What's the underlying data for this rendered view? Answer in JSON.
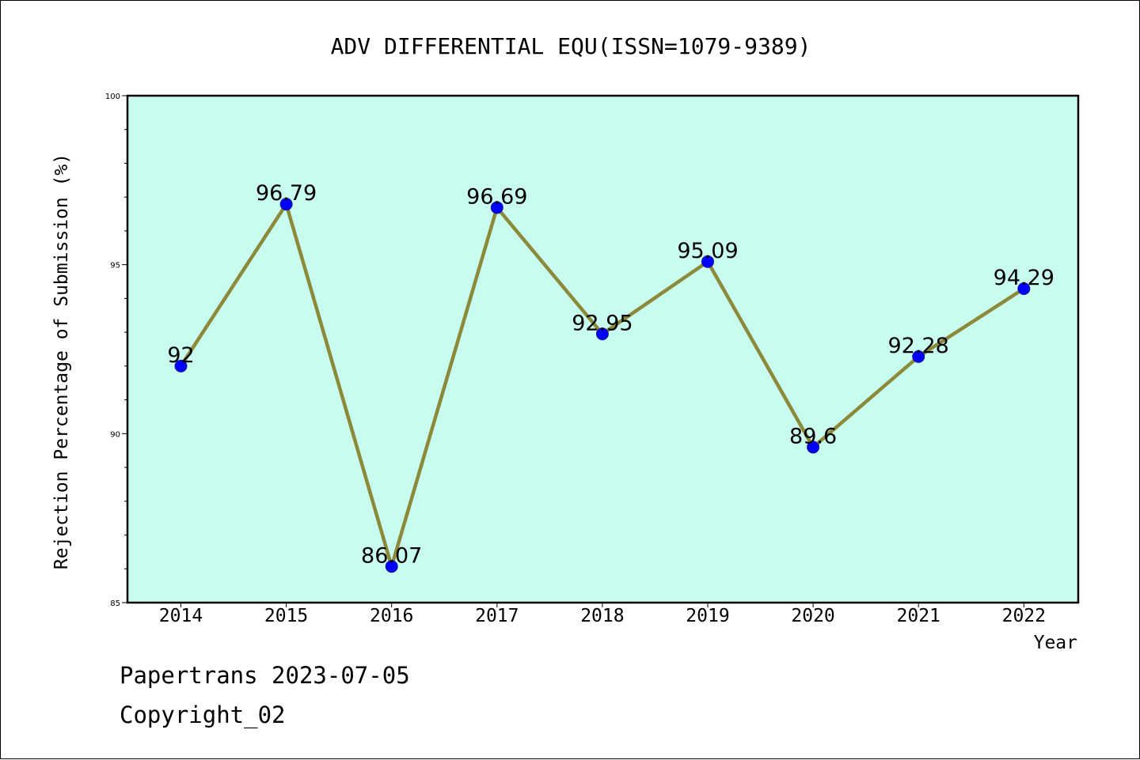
{
  "footer": {
    "line1": "Papertrans 2023-07-05",
    "line2": "Copyright_02"
  },
  "chart_data": {
    "type": "line",
    "title": "ADV DIFFERENTIAL EQU(ISSN=1079-9389)",
    "xlabel": "Year",
    "ylabel": "Rejection Percentage of Submission (%)",
    "categories": [
      "2014",
      "2015",
      "2016",
      "2017",
      "2018",
      "2019",
      "2020",
      "2021",
      "2022"
    ],
    "values": [
      92,
      96.79,
      86.07,
      96.69,
      92.95,
      95.09,
      89.6,
      92.28,
      94.29
    ],
    "data_labels": [
      "92",
      "96.79",
      "86.07",
      "96.69",
      "92.95",
      "95.09",
      "89.6",
      "92.28",
      "94.29"
    ],
    "ylim": [
      85,
      100
    ],
    "yticks": [
      "85",
      "90",
      "95",
      "100"
    ],
    "grid": false,
    "colors": {
      "plot_background": "#c8fcee",
      "line": "#8c8a3a",
      "marker": "#0000ff",
      "marker_edge": "#1a1a8a"
    }
  }
}
